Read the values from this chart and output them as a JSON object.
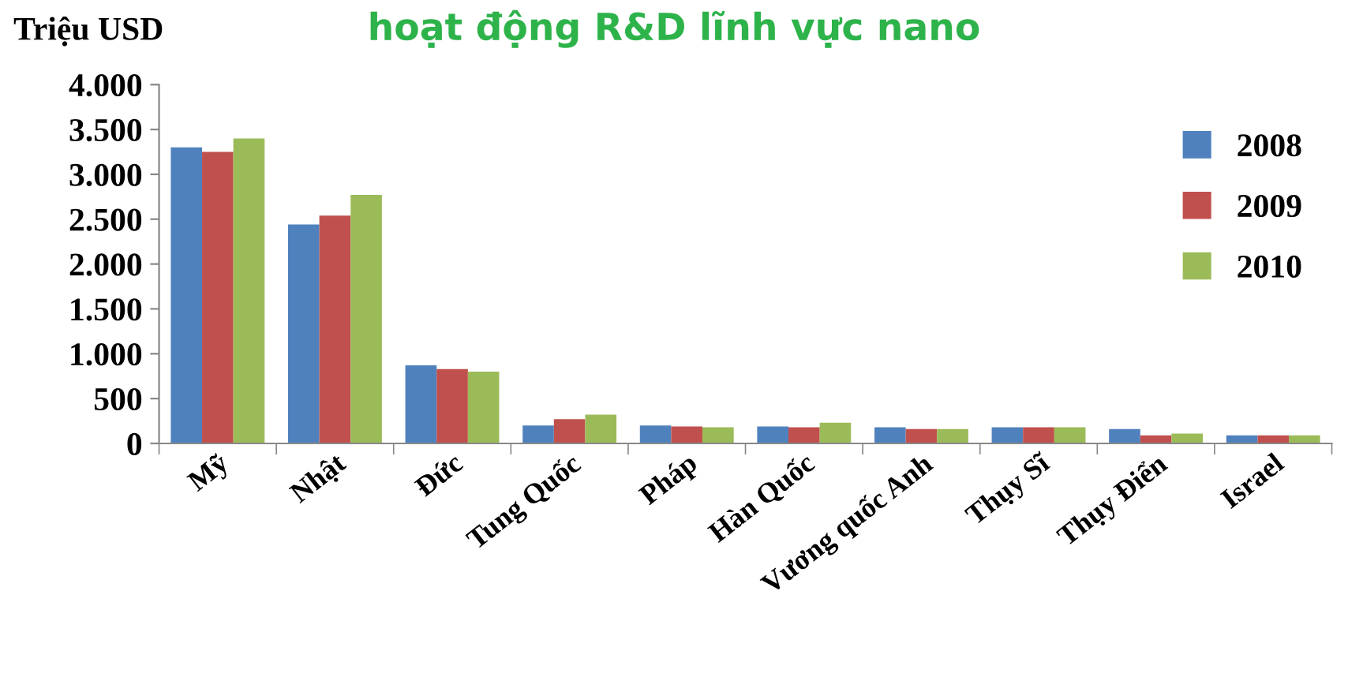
{
  "chart_data": {
    "type": "bar",
    "title": "hoạt động R&D lĩnh vực nano",
    "ylabel": "Triệu USD",
    "categories": [
      "Mỹ",
      "Nhật",
      "Đức",
      "Tung Quốc",
      "Pháp",
      "Hàn Quốc",
      "Vương quốc Anh",
      "Thụy Sĩ",
      "Thụy Điển",
      "Israel"
    ],
    "series": [
      {
        "name": "2008",
        "color": "#4f81bd",
        "values": [
          3300,
          2440,
          870,
          200,
          200,
          190,
          180,
          180,
          160,
          90
        ]
      },
      {
        "name": "2009",
        "color": "#c0504d",
        "values": [
          3250,
          2540,
          830,
          270,
          190,
          180,
          160,
          180,
          90,
          90
        ]
      },
      {
        "name": "2010",
        "color": "#9bbb59",
        "values": [
          3400,
          2770,
          800,
          320,
          180,
          230,
          160,
          180,
          110,
          90
        ]
      }
    ],
    "ylim": [
      0,
      4000
    ],
    "yticks": [
      0,
      500,
      {
        "value": 1000,
        "label": "1.000"
      },
      {
        "value": 1500,
        "label": "1.500"
      },
      {
        "value": 2000,
        "label": "2.000"
      },
      {
        "value": 2500,
        "label": "2.500"
      },
      {
        "value": 3000,
        "label": "3.000"
      },
      {
        "value": 3500,
        "label": "3.500"
      },
      {
        "value": 4000,
        "label": "4.000"
      }
    ],
    "grid": false,
    "legend": "top right"
  }
}
